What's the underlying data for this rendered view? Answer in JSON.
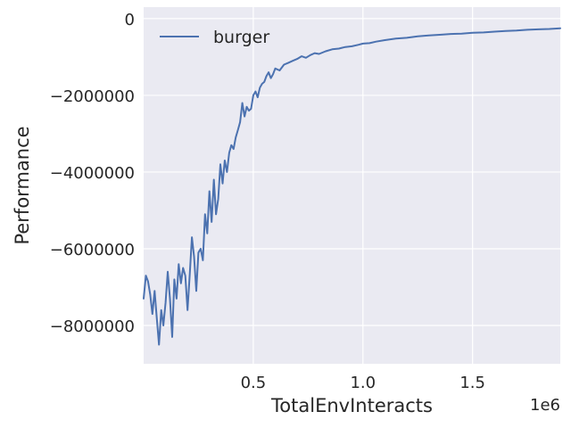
{
  "chart_data": {
    "type": "line",
    "title": "",
    "xlabel": "TotalEnvInteracts",
    "ylabel": "Performance",
    "x_offset_label": "1e6",
    "xlim": [
      0.0,
      1.9
    ],
    "ylim": [
      -9000000,
      300000
    ],
    "x_ticks": [
      0.5,
      1.0,
      1.5
    ],
    "x_tick_labels": [
      "0.5",
      "1.0",
      "1.5"
    ],
    "y_ticks": [
      0,
      -2000000,
      -4000000,
      -6000000,
      -8000000
    ],
    "y_tick_labels": [
      "0",
      "−2000000",
      "−4000000",
      "−6000000",
      "−8000000"
    ],
    "grid": true,
    "legend_position": "top-left",
    "background_color": "#eaeaf2",
    "series": [
      {
        "name": "burger",
        "color": "#4c72b0",
        "points": [
          [
            0.0,
            -7300000
          ],
          [
            0.01,
            -6700000
          ],
          [
            0.02,
            -6850000
          ],
          [
            0.03,
            -7200000
          ],
          [
            0.04,
            -7700000
          ],
          [
            0.05,
            -7100000
          ],
          [
            0.06,
            -7800000
          ],
          [
            0.07,
            -8500000
          ],
          [
            0.08,
            -7600000
          ],
          [
            0.09,
            -8000000
          ],
          [
            0.1,
            -7400000
          ],
          [
            0.11,
            -6600000
          ],
          [
            0.12,
            -7300000
          ],
          [
            0.13,
            -8300000
          ],
          [
            0.14,
            -6800000
          ],
          [
            0.15,
            -7300000
          ],
          [
            0.16,
            -6400000
          ],
          [
            0.17,
            -6900000
          ],
          [
            0.18,
            -6500000
          ],
          [
            0.19,
            -6700000
          ],
          [
            0.2,
            -7600000
          ],
          [
            0.21,
            -6700000
          ],
          [
            0.22,
            -5700000
          ],
          [
            0.23,
            -6200000
          ],
          [
            0.24,
            -7100000
          ],
          [
            0.25,
            -6100000
          ],
          [
            0.26,
            -6000000
          ],
          [
            0.27,
            -6300000
          ],
          [
            0.28,
            -5100000
          ],
          [
            0.29,
            -5600000
          ],
          [
            0.3,
            -4500000
          ],
          [
            0.31,
            -5300000
          ],
          [
            0.32,
            -4200000
          ],
          [
            0.33,
            -5100000
          ],
          [
            0.34,
            -4700000
          ],
          [
            0.35,
            -3800000
          ],
          [
            0.36,
            -4300000
          ],
          [
            0.37,
            -3700000
          ],
          [
            0.38,
            -4000000
          ],
          [
            0.39,
            -3500000
          ],
          [
            0.4,
            -3300000
          ],
          [
            0.41,
            -3400000
          ],
          [
            0.42,
            -3100000
          ],
          [
            0.43,
            -2900000
          ],
          [
            0.44,
            -2700000
          ],
          [
            0.45,
            -2200000
          ],
          [
            0.46,
            -2550000
          ],
          [
            0.47,
            -2300000
          ],
          [
            0.48,
            -2400000
          ],
          [
            0.49,
            -2350000
          ],
          [
            0.5,
            -2000000
          ],
          [
            0.51,
            -1900000
          ],
          [
            0.52,
            -2050000
          ],
          [
            0.53,
            -1800000
          ],
          [
            0.54,
            -1700000
          ],
          [
            0.55,
            -1650000
          ],
          [
            0.56,
            -1500000
          ],
          [
            0.57,
            -1400000
          ],
          [
            0.58,
            -1550000
          ],
          [
            0.59,
            -1450000
          ],
          [
            0.6,
            -1300000
          ],
          [
            0.62,
            -1350000
          ],
          [
            0.64,
            -1200000
          ],
          [
            0.66,
            -1150000
          ],
          [
            0.68,
            -1100000
          ],
          [
            0.7,
            -1050000
          ],
          [
            0.72,
            -980000
          ],
          [
            0.74,
            -1020000
          ],
          [
            0.76,
            -950000
          ],
          [
            0.78,
            -900000
          ],
          [
            0.8,
            -920000
          ],
          [
            0.83,
            -850000
          ],
          [
            0.86,
            -800000
          ],
          [
            0.89,
            -780000
          ],
          [
            0.92,
            -740000
          ],
          [
            0.95,
            -720000
          ],
          [
            0.98,
            -680000
          ],
          [
            1.0,
            -650000
          ],
          [
            1.03,
            -640000
          ],
          [
            1.06,
            -600000
          ],
          [
            1.1,
            -560000
          ],
          [
            1.15,
            -520000
          ],
          [
            1.2,
            -500000
          ],
          [
            1.25,
            -460000
          ],
          [
            1.3,
            -440000
          ],
          [
            1.35,
            -420000
          ],
          [
            1.4,
            -400000
          ],
          [
            1.45,
            -390000
          ],
          [
            1.5,
            -370000
          ],
          [
            1.55,
            -360000
          ],
          [
            1.6,
            -340000
          ],
          [
            1.65,
            -320000
          ],
          [
            1.7,
            -310000
          ],
          [
            1.75,
            -290000
          ],
          [
            1.8,
            -280000
          ],
          [
            1.85,
            -270000
          ],
          [
            1.9,
            -250000
          ]
        ]
      }
    ]
  }
}
